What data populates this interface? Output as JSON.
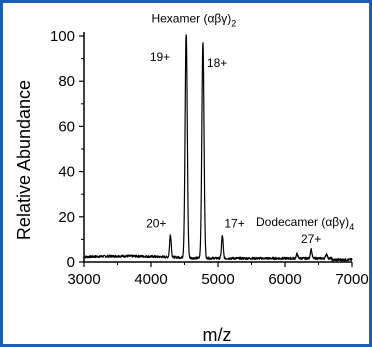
{
  "chart_data": {
    "type": "line",
    "xlabel": "m/z",
    "ylabel": "Relative Abundance",
    "xlim": [
      3000,
      7000
    ],
    "ylim": [
      0,
      100
    ],
    "x_ticks": [
      "3000",
      "4000",
      "5000",
      "6000",
      "7000"
    ],
    "y_ticks": [
      "0",
      "20",
      "40",
      "60",
      "80",
      "100"
    ],
    "grid": false,
    "line_color": "#000000",
    "peaks": [
      {
        "label": "20+",
        "x": 4290,
        "y": 10
      },
      {
        "label": "19+",
        "x": 4525,
        "y": 100
      },
      {
        "label": "18+",
        "x": 4775,
        "y": 96
      },
      {
        "label": "17+",
        "x": 5065,
        "y": 10
      },
      {
        "label": "27+",
        "x": 6390,
        "y": 4
      },
      {
        "label": "",
        "x": 6180,
        "y": 2
      },
      {
        "label": "",
        "x": 6620,
        "y": 2
      }
    ],
    "annotations": [
      {
        "id": "hexamer",
        "text": "Hexamer (αβγ)",
        "subscript": "2",
        "x": 4640,
        "y": 106
      },
      {
        "id": "dodecamer",
        "text": "Dodecamer (αβγ)",
        "subscript": "4",
        "x": 6300,
        "y": 16
      }
    ]
  }
}
